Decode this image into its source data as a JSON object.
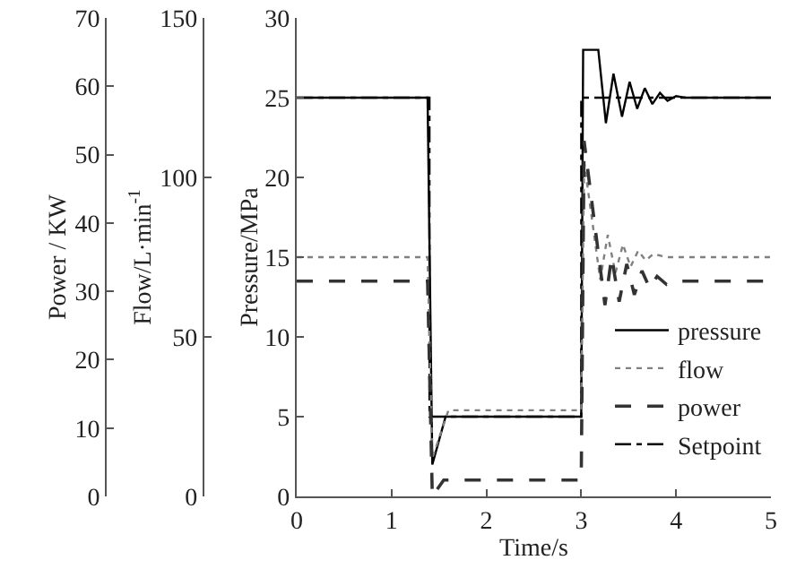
{
  "chart_data": {
    "type": "line",
    "xlabel": "Time/s",
    "ylabel": "Pressure/MPa",
    "y2label": "Flow/L·min$^{-1}$",
    "y3label": "Power / KW",
    "xlim": [
      0,
      5
    ],
    "xticks": [
      0,
      1,
      2,
      3,
      4,
      5
    ],
    "ylim": [
      0,
      30
    ],
    "yticks": [
      0,
      5,
      10,
      15,
      20,
      25,
      30
    ],
    "y2lim": [
      0,
      150
    ],
    "y2ticks": [
      0,
      50,
      100,
      150
    ],
    "y3lim": [
      0,
      70
    ],
    "y3ticks": [
      0,
      10,
      20,
      30,
      40,
      50,
      60,
      70
    ],
    "legend": "bottom right",
    "marker": "none",
    "series": [
      {
        "name": "pressure",
        "color": "#000000",
        "line_style": "solid",
        "axis": "y",
        "x": [
          0,
          1.38,
          1.43,
          1.57,
          3.0,
          3.02,
          3.18,
          3.26,
          3.34,
          3.43,
          3.51,
          3.59,
          3.67,
          3.75,
          3.83,
          3.91,
          4.0,
          4.1,
          5
        ],
        "values": [
          25,
          25,
          2,
          5,
          5,
          28,
          28,
          23.4,
          26.5,
          23.8,
          26,
          24.3,
          25.6,
          24.6,
          25.3,
          24.8,
          25.1,
          25,
          25
        ]
      },
      {
        "name": "flow",
        "color": "#808080",
        "line_style": "dotted",
        "axis": "y2",
        "x": [
          0,
          1.38,
          1.43,
          1.6,
          3.0,
          3.03,
          3.2,
          3.28,
          3.36,
          3.44,
          3.52,
          3.6,
          3.68,
          3.76,
          3.9,
          5
        ],
        "values": [
          75,
          75,
          12,
          27,
          27,
          105,
          68,
          82,
          70,
          79,
          72,
          77,
          74,
          76,
          75,
          75
        ]
      },
      {
        "name": "power",
        "color": "#333333",
        "line_style": "dashed",
        "axis": "y3",
        "x": [
          0,
          1.38,
          1.43,
          1.55,
          3.0,
          3.03,
          3.25,
          3.32,
          3.4,
          3.48,
          3.56,
          3.64,
          3.72,
          3.8,
          3.9,
          4.0,
          5
        ],
        "values": [
          31.5,
          31.5,
          0,
          2.4,
          2.4,
          52,
          28,
          35,
          28.5,
          34,
          29.5,
          33,
          30.5,
          32.2,
          31,
          31.5,
          31.5
        ]
      },
      {
        "name": "Setpoint",
        "color": "#000000",
        "line_style": "dashdot",
        "axis": "y",
        "x": [
          0,
          1.4,
          1.4,
          3.0,
          3.0,
          5
        ],
        "values": [
          25,
          25,
          5,
          5,
          25,
          25
        ]
      }
    ]
  }
}
